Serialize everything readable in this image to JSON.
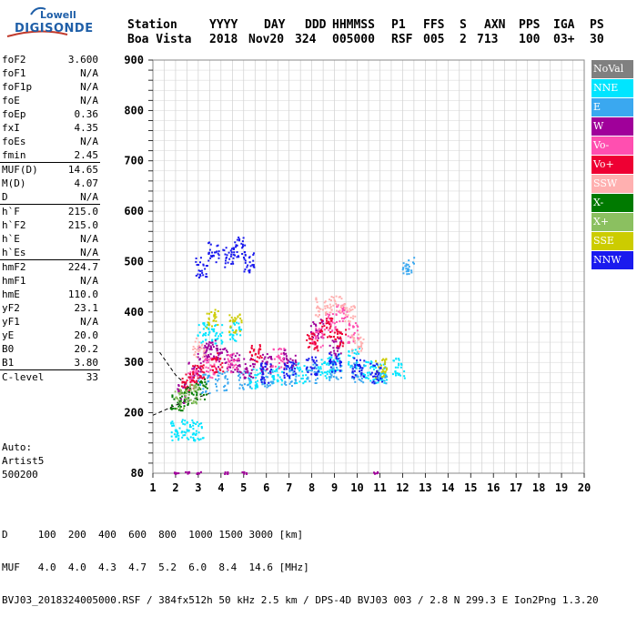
{
  "logo": {
    "line1": "Lowell",
    "line2": "DIGISONDE"
  },
  "header": {
    "labels": [
      "Station",
      "YYYY",
      "DAY",
      "DDD",
      "HHMMSS",
      "P1",
      "FFS",
      "S",
      "AXN",
      "PPS",
      "IGA",
      "PS"
    ],
    "values": [
      "Boa Vista",
      "2018",
      "Nov20",
      "324",
      "005000",
      "RSF",
      "005",
      "2",
      "713",
      "100",
      "03+",
      "30"
    ]
  },
  "params": [
    {
      "name": "foF2",
      "value": "3.600"
    },
    {
      "name": "foF1",
      "value": "N/A"
    },
    {
      "name": "foF1p",
      "value": "N/A"
    },
    {
      "name": "foE",
      "value": "N/A"
    },
    {
      "name": "foEp",
      "value": "0.36"
    },
    {
      "name": "fxI",
      "value": "4.35"
    },
    {
      "name": "foEs",
      "value": "N/A"
    },
    {
      "name": "fmin",
      "value": "2.45"
    },
    {
      "name": "MUF(D)",
      "value": "14.65"
    },
    {
      "name": "M(D)",
      "value": "4.07"
    },
    {
      "name": "D",
      "value": "N/A"
    },
    {
      "name": "h`F",
      "value": "215.0"
    },
    {
      "name": "h`F2",
      "value": "215.0"
    },
    {
      "name": "h`E",
      "value": "N/A"
    },
    {
      "name": "h`Es",
      "value": "N/A"
    },
    {
      "name": "hmF2",
      "value": "224.7"
    },
    {
      "name": "hmF1",
      "value": "N/A"
    },
    {
      "name": "hmE",
      "value": "110.0"
    },
    {
      "name": "yF2",
      "value": "23.1"
    },
    {
      "name": "yF1",
      "value": "N/A"
    },
    {
      "name": "yE",
      "value": "20.0"
    },
    {
      "name": "B0",
      "value": "20.2"
    },
    {
      "name": "B1",
      "value": "3.80"
    },
    {
      "name": "C-level",
      "value": "33"
    }
  ],
  "auto": {
    "line1": "Auto:",
    "line2": "Artist5",
    "line3": "500200"
  },
  "legend": [
    {
      "label": "NoVal",
      "color": "#808080"
    },
    {
      "label": "NNE",
      "color": "#00e5ff"
    },
    {
      "label": "E",
      "color": "#3aa8f0"
    },
    {
      "label": "W",
      "color": "#a0009a"
    },
    {
      "label": "Vo-",
      "color": "#ff4fb0"
    },
    {
      "label": "Vo+",
      "color": "#ee0033"
    },
    {
      "label": "SSW",
      "color": "#ffb0b0"
    },
    {
      "label": "X-",
      "color": "#007a00"
    },
    {
      "label": "X+",
      "color": "#8bc060"
    },
    {
      "label": "SSE",
      "color": "#cccc00"
    },
    {
      "label": "NNW",
      "color": "#1a1aee"
    }
  ],
  "chart_data": {
    "type": "scatter",
    "xlim": [
      1,
      20
    ],
    "ylim": [
      80,
      900
    ],
    "x_ticks": [
      1,
      2,
      3,
      4,
      5,
      6,
      7,
      8,
      9,
      10,
      11,
      12,
      13,
      14,
      15,
      16,
      17,
      18,
      19,
      20
    ],
    "y_ticks": [
      80,
      200,
      300,
      400,
      500,
      600,
      700,
      800,
      900
    ],
    "grid": true,
    "series": [
      {
        "name": "NNE",
        "points": [
          [
            2.0,
            165
          ],
          [
            2.5,
            168
          ],
          [
            3.0,
            166
          ],
          [
            3.2,
            360
          ],
          [
            3.8,
            358
          ],
          [
            4.6,
            362
          ],
          [
            5.5,
            270
          ],
          [
            6.5,
            275
          ],
          [
            7.5,
            280
          ],
          [
            8.5,
            290
          ],
          [
            9.0,
            300
          ],
          [
            9.8,
            310
          ],
          [
            10.5,
            285
          ],
          [
            11.0,
            280
          ],
          [
            11.8,
            290
          ]
        ]
      },
      {
        "name": "E",
        "points": [
          [
            3.2,
            260
          ],
          [
            4.0,
            265
          ],
          [
            5.0,
            268
          ],
          [
            6.0,
            272
          ],
          [
            7.0,
            275
          ],
          [
            8.0,
            280
          ],
          [
            9.0,
            285
          ],
          [
            10.0,
            282
          ],
          [
            11.0,
            280
          ],
          [
            12.2,
            492
          ]
        ]
      },
      {
        "name": "W",
        "points": [
          [
            2.3,
            240
          ],
          [
            2.8,
            290
          ],
          [
            3.2,
            320
          ],
          [
            3.6,
            330
          ],
          [
            4.0,
            310
          ],
          [
            4.6,
            300
          ],
          [
            5.2,
            290
          ],
          [
            6.0,
            300
          ],
          [
            7.0,
            310
          ],
          [
            8.2,
            370
          ],
          [
            9.0,
            330
          ],
          [
            2.0,
            82
          ],
          [
            2.5,
            82
          ],
          [
            3.0,
            82
          ],
          [
            4.2,
            82
          ],
          [
            5.0,
            82
          ],
          [
            10.8,
            82
          ]
        ]
      },
      {
        "name": "Vo-",
        "points": [
          [
            2.8,
            270
          ],
          [
            3.5,
            290
          ],
          [
            4.5,
            300
          ],
          [
            6.5,
            310
          ],
          [
            8.2,
            350
          ],
          [
            8.8,
            380
          ],
          [
            9.3,
            400
          ],
          [
            9.8,
            360
          ]
        ]
      },
      {
        "name": "Vo+",
        "points": [
          [
            2.5,
            260
          ],
          [
            3.0,
            280
          ],
          [
            3.8,
            300
          ],
          [
            5.5,
            320
          ],
          [
            8.0,
            340
          ],
          [
            8.6,
            370
          ],
          [
            9.2,
            350
          ]
        ]
      },
      {
        "name": "SSW",
        "points": [
          [
            3.0,
            330
          ],
          [
            8.4,
            410
          ],
          [
            9.0,
            420
          ],
          [
            9.6,
            400
          ],
          [
            10.0,
            340
          ]
        ]
      },
      {
        "name": "X-",
        "points": [
          [
            2.0,
            222
          ],
          [
            2.6,
            232
          ],
          [
            3.1,
            248
          ]
        ]
      },
      {
        "name": "X+",
        "points": [
          [
            2.2,
            228
          ],
          [
            2.8,
            238
          ]
        ]
      },
      {
        "name": "SSE",
        "points": [
          [
            3.6,
            390
          ],
          [
            4.6,
            380
          ],
          [
            11.0,
            290
          ]
        ]
      },
      {
        "name": "NNW",
        "points": [
          [
            3.1,
            490
          ],
          [
            3.6,
            520
          ],
          [
            4.3,
            510
          ],
          [
            4.8,
            530
          ],
          [
            5.2,
            500
          ],
          [
            6.0,
            280
          ],
          [
            7.0,
            285
          ],
          [
            8.0,
            295
          ],
          [
            9.0,
            300
          ],
          [
            10.0,
            290
          ],
          [
            10.8,
            280
          ]
        ]
      }
    ]
  },
  "footer": {
    "line1": "D     100  200  400  600  800  1000 1500 3000 [km]",
    "line2": "MUF   4.0  4.0  4.3  4.7  5.2  6.0  8.4  14.6 [MHz]",
    "line3": "BVJ03_2018324005000.RSF / 384fx512h 50 kHz 2.5 km / DPS-4D BVJ03 003 / 2.8 N 299.3 E Ion2Png 1.3.20"
  }
}
